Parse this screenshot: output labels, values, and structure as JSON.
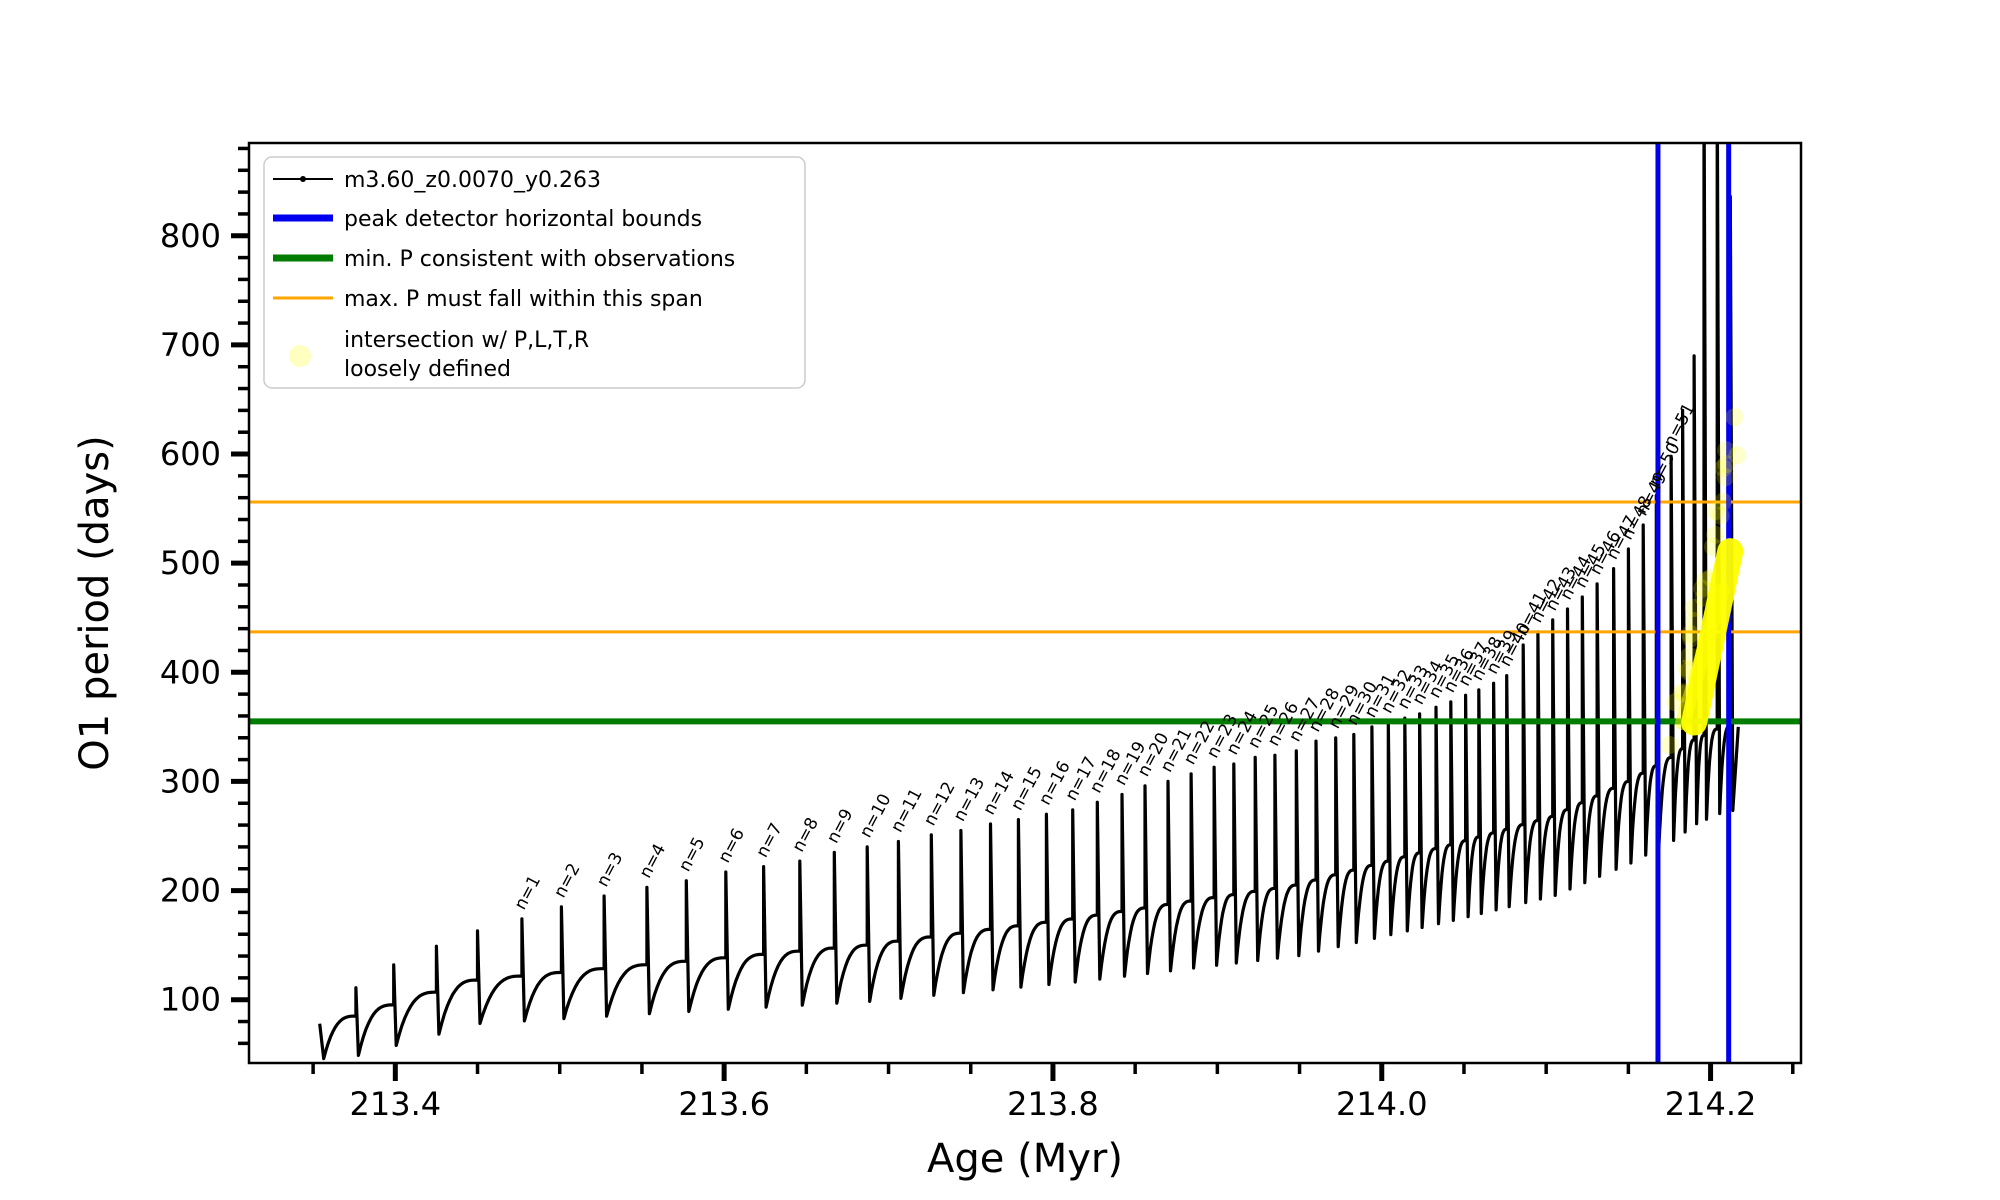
{
  "figure": {
    "xlabel": "Age (Myr)",
    "ylabel": "O1 period (days)"
  },
  "legend": {
    "items": [
      {
        "label": "m3.60_z0.0070_y0.263",
        "color": "#000000",
        "style": "line-dot"
      },
      {
        "label": "peak detector horizontal bounds",
        "color": "#0000ee",
        "style": "thick-line"
      },
      {
        "label": "min. P consistent with observations",
        "color": "#007d00",
        "style": "thick-line"
      },
      {
        "label": "max. P must fall within this span",
        "color": "#ffa500",
        "style": "thin-line"
      },
      {
        "label": "intersection w/ P,L,T,R",
        "label2": "loosely defined",
        "color": "#ffff00",
        "style": "pale-dot"
      }
    ]
  },
  "chart_data": {
    "type": "line",
    "title": "",
    "xlabel": "Age (Myr)",
    "ylabel": "O1 period (days)",
    "series_label": "m3.60_z0.0070_y0.263",
    "xlim": [
      213.311,
      214.255
    ],
    "ylim": [
      42,
      885
    ],
    "x_ticks": [
      {
        "v": 213.4,
        "label": "213.4"
      },
      {
        "v": 213.6,
        "label": "213.6"
      },
      {
        "v": 213.8,
        "label": "213.8"
      },
      {
        "v": 214.0,
        "label": "214.0"
      },
      {
        "v": 214.2,
        "label": "214.2"
      }
    ],
    "y_ticks": [
      {
        "v": 100,
        "label": "100"
      },
      {
        "v": 200,
        "label": "200"
      },
      {
        "v": 300,
        "label": "300"
      },
      {
        "v": 400,
        "label": "400"
      },
      {
        "v": 500,
        "label": "500"
      },
      {
        "v": 600,
        "label": "600"
      },
      {
        "v": 700,
        "label": "700"
      },
      {
        "v": 800,
        "label": "800"
      }
    ],
    "x_minor_step": 0.05,
    "y_minor_step": 20,
    "grid": false,
    "legend_position": "upper-left",
    "hlines": [
      {
        "name": "min-P-observations",
        "value": 355,
        "color": "#007d00",
        "width": 6
      },
      {
        "name": "max-P-span-lower",
        "value": 437,
        "color": "#ffa500",
        "width": 3
      },
      {
        "name": "max-P-span-upper",
        "value": 556,
        "color": "#ffa500",
        "width": 3
      }
    ],
    "vlines": [
      {
        "name": "peak-detector-left-bound",
        "value": 214.168,
        "color": "#0000ee",
        "width": 5
      },
      {
        "name": "peak-detector-right-bound",
        "value": 214.211,
        "color": "#0000ee",
        "width": 5
      }
    ],
    "yellow_region": {
      "band_main": [
        [
          214.19,
          354
        ],
        [
          214.212,
          511
        ]
      ],
      "band_secondary": [
        [
          214.183,
          354
        ],
        [
          214.207,
          475
        ]
      ],
      "scatter_age_range": [
        214.178,
        214.215
      ],
      "scatter_period_range": [
        350,
        620
      ],
      "color": "#ffff00"
    },
    "baseline": [
      [
        213.354,
        72
      ],
      [
        213.376,
        85
      ],
      [
        213.45,
        118
      ],
      [
        213.553,
        132
      ],
      [
        213.687,
        150
      ],
      [
        213.812,
        174
      ],
      [
        213.948,
        205
      ],
      [
        214.042,
        242
      ],
      [
        214.104,
        268
      ],
      [
        214.15,
        300
      ],
      [
        214.176,
        322
      ],
      [
        214.19,
        338
      ],
      [
        214.204,
        348
      ],
      [
        214.214,
        352
      ]
    ],
    "pre_pulses": [
      [
        213.376,
        111
      ],
      [
        213.399,
        132
      ],
      [
        213.425,
        149
      ],
      [
        213.45,
        163
      ]
    ],
    "pulses": [
      [
        1,
        213.477,
        174
      ],
      [
        2,
        213.501,
        185
      ],
      [
        3,
        213.527,
        195
      ],
      [
        4,
        213.553,
        203
      ],
      [
        5,
        213.577,
        209
      ],
      [
        6,
        213.601,
        217
      ],
      [
        7,
        213.624,
        222
      ],
      [
        8,
        213.646,
        227
      ],
      [
        9,
        213.667,
        235
      ],
      [
        10,
        213.687,
        240
      ],
      [
        11,
        213.706,
        245
      ],
      [
        12,
        213.726,
        251
      ],
      [
        13,
        213.744,
        255
      ],
      [
        14,
        213.762,
        261
      ],
      [
        15,
        213.779,
        265
      ],
      [
        16,
        213.796,
        270
      ],
      [
        17,
        213.812,
        274
      ],
      [
        18,
        213.827,
        281
      ],
      [
        19,
        213.842,
        288
      ],
      [
        20,
        213.856,
        296
      ],
      [
        21,
        213.87,
        300
      ],
      [
        22,
        213.884,
        307
      ],
      [
        23,
        213.898,
        313
      ],
      [
        24,
        213.91,
        316
      ],
      [
        25,
        213.923,
        322
      ],
      [
        26,
        213.935,
        324
      ],
      [
        27,
        213.948,
        328
      ],
      [
        28,
        213.96,
        337
      ],
      [
        29,
        213.972,
        340
      ],
      [
        30,
        213.983,
        343
      ],
      [
        31,
        213.994,
        350
      ],
      [
        32,
        214.004,
        354
      ],
      [
        33,
        214.014,
        358
      ],
      [
        34,
        214.023,
        362
      ],
      [
        35,
        214.033,
        368
      ],
      [
        36,
        214.042,
        373
      ],
      [
        37,
        214.051,
        379
      ],
      [
        38,
        214.059,
        384
      ],
      [
        39,
        214.068,
        390
      ],
      [
        40,
        214.076,
        397
      ],
      [
        41,
        214.086,
        425
      ],
      [
        42,
        214.095,
        437
      ],
      [
        43,
        214.104,
        448
      ],
      [
        44,
        214.113,
        458
      ],
      [
        45,
        214.122,
        469
      ],
      [
        46,
        214.131,
        481
      ],
      [
        47,
        214.141,
        495
      ],
      [
        48,
        214.15,
        513
      ],
      [
        49,
        214.159,
        535
      ],
      [
        50,
        214.167,
        562
      ],
      [
        51,
        214.176,
        598
      ]
    ],
    "post_pulses": [
      [
        214.183,
        640
      ],
      [
        214.19,
        690
      ],
      [
        214.196,
        950
      ],
      [
        214.204,
        950
      ],
      [
        214.212,
        836
      ]
    ],
    "pulse_label_prefix": "n="
  }
}
